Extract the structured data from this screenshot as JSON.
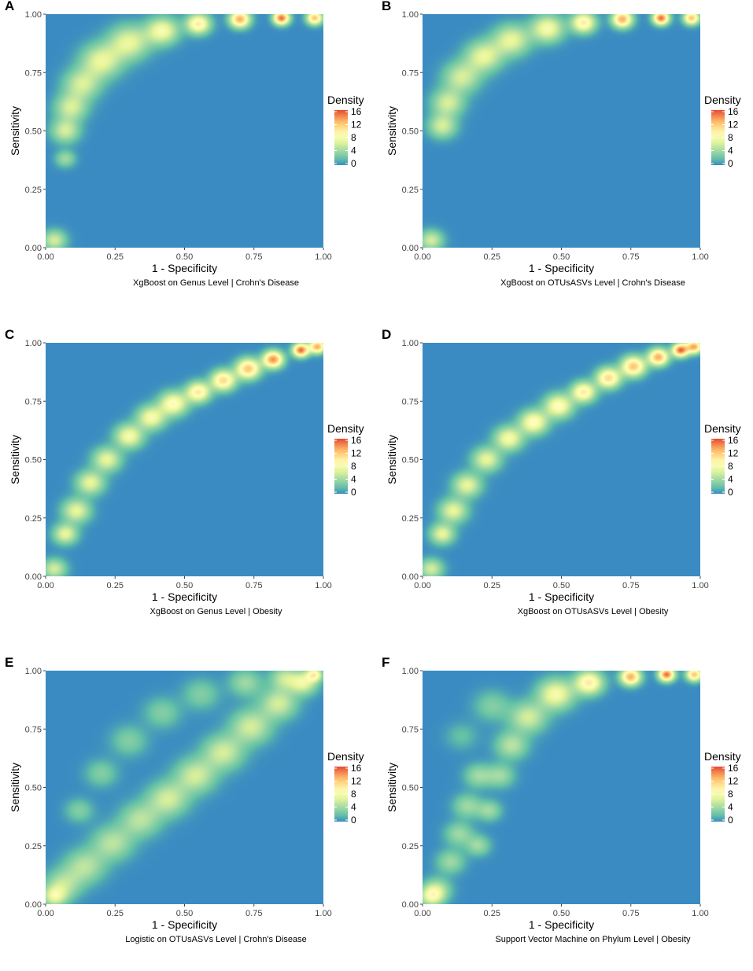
{
  "legend": {
    "title": "Density",
    "ticks": [
      "16",
      "12",
      "8",
      "4",
      "0"
    ],
    "colors": [
      "#e34a33",
      "#fc8d59",
      "#fee08b",
      "#ffffbf",
      "#e6f598",
      "#99d594",
      "#3288bd"
    ]
  },
  "background_color": "#3a8bc2",
  "chart_data": [
    {
      "panel": "A",
      "type": "heatmap",
      "xlabel": "1 - Specificity",
      "ylabel": "Sensitivity",
      "caption": "XgBoost on Genus Level | Crohn's Disease",
      "xlim": [
        0,
        1
      ],
      "ylim": [
        0,
        1
      ],
      "xticks": [
        "0.00",
        "0.25",
        "0.50",
        "0.75",
        "1.00"
      ],
      "yticks": [
        "0.00",
        "0.25",
        "0.50",
        "0.75",
        "1.00"
      ],
      "density_ridge": [
        [
          0.07,
          0.5,
          6,
          0.035
        ],
        [
          0.09,
          0.6,
          6,
          0.04
        ],
        [
          0.13,
          0.7,
          6,
          0.045
        ],
        [
          0.2,
          0.8,
          7,
          0.05
        ],
        [
          0.3,
          0.88,
          7,
          0.05
        ],
        [
          0.42,
          0.93,
          8,
          0.04
        ],
        [
          0.55,
          0.96,
          10,
          0.03
        ],
        [
          0.7,
          0.98,
          13,
          0.025
        ],
        [
          0.85,
          0.985,
          15,
          0.02
        ],
        [
          0.97,
          0.985,
          12,
          0.02
        ],
        [
          0.07,
          0.38,
          4,
          0.025
        ],
        [
          0.03,
          0.03,
          6,
          0.03
        ]
      ]
    },
    {
      "panel": "B",
      "type": "heatmap",
      "xlabel": "1 - Specificity",
      "ylabel": "Sensitivity",
      "caption": "XgBoost on OTUsASVs Level | Crohn's Disease",
      "xlim": [
        0,
        1
      ],
      "ylim": [
        0,
        1
      ],
      "xticks": [
        "0.00",
        "0.25",
        "0.50",
        "0.75",
        "1.00"
      ],
      "yticks": [
        "0.00",
        "0.25",
        "0.50",
        "0.75",
        "1.00"
      ],
      "density_ridge": [
        [
          0.07,
          0.52,
          6,
          0.035
        ],
        [
          0.09,
          0.62,
          6,
          0.04
        ],
        [
          0.14,
          0.73,
          6,
          0.045
        ],
        [
          0.22,
          0.82,
          7,
          0.045
        ],
        [
          0.32,
          0.89,
          7,
          0.045
        ],
        [
          0.45,
          0.94,
          8,
          0.04
        ],
        [
          0.58,
          0.965,
          10,
          0.03
        ],
        [
          0.72,
          0.98,
          13,
          0.025
        ],
        [
          0.86,
          0.985,
          15,
          0.02
        ],
        [
          0.97,
          0.985,
          12,
          0.02
        ],
        [
          0.03,
          0.03,
          6,
          0.03
        ]
      ]
    },
    {
      "panel": "C",
      "type": "heatmap",
      "xlabel": "1 - Specificity",
      "ylabel": "Sensitivity",
      "caption": "XgBoost on Genus Level | Obesity",
      "xlim": [
        0,
        1
      ],
      "ylim": [
        0,
        1
      ],
      "xticks": [
        "0.00",
        "0.25",
        "0.50",
        "0.75",
        "1.00"
      ],
      "yticks": [
        "0.00",
        "0.25",
        "0.50",
        "0.75",
        "1.00"
      ],
      "density_ridge": [
        [
          0.07,
          0.18,
          7,
          0.03
        ],
        [
          0.11,
          0.28,
          7,
          0.035
        ],
        [
          0.16,
          0.4,
          7,
          0.035
        ],
        [
          0.22,
          0.5,
          7,
          0.035
        ],
        [
          0.3,
          0.6,
          8,
          0.035
        ],
        [
          0.38,
          0.68,
          8,
          0.035
        ],
        [
          0.46,
          0.74,
          9,
          0.035
        ],
        [
          0.55,
          0.79,
          10,
          0.03
        ],
        [
          0.64,
          0.84,
          11,
          0.03
        ],
        [
          0.73,
          0.89,
          12,
          0.03
        ],
        [
          0.82,
          0.93,
          14,
          0.025
        ],
        [
          0.92,
          0.97,
          15,
          0.02
        ],
        [
          0.98,
          0.985,
          13,
          0.02
        ],
        [
          0.03,
          0.03,
          6,
          0.03
        ]
      ]
    },
    {
      "panel": "D",
      "type": "heatmap",
      "xlabel": "1 - Specificity",
      "ylabel": "Sensitivity",
      "caption": "XgBoost on OTUsASVs Level | Obesity",
      "xlim": [
        0,
        1
      ],
      "ylim": [
        0,
        1
      ],
      "xticks": [
        "0.00",
        "0.25",
        "0.50",
        "0.75",
        "1.00"
      ],
      "yticks": [
        "0.00",
        "0.25",
        "0.50",
        "0.75",
        "1.00"
      ],
      "density_ridge": [
        [
          0.07,
          0.18,
          7,
          0.03
        ],
        [
          0.11,
          0.28,
          7,
          0.035
        ],
        [
          0.16,
          0.39,
          7,
          0.035
        ],
        [
          0.23,
          0.5,
          7,
          0.035
        ],
        [
          0.31,
          0.59,
          8,
          0.035
        ],
        [
          0.4,
          0.66,
          9,
          0.035
        ],
        [
          0.49,
          0.73,
          9,
          0.035
        ],
        [
          0.58,
          0.79,
          10,
          0.03
        ],
        [
          0.67,
          0.85,
          11,
          0.03
        ],
        [
          0.76,
          0.9,
          12,
          0.03
        ],
        [
          0.85,
          0.94,
          13,
          0.025
        ],
        [
          0.93,
          0.97,
          15,
          0.02
        ],
        [
          0.98,
          0.985,
          13,
          0.02
        ],
        [
          0.03,
          0.03,
          6,
          0.03
        ]
      ]
    },
    {
      "panel": "E",
      "type": "heatmap",
      "xlabel": "1 - Specificity",
      "ylabel": "Sensitivity",
      "caption": "Logistic on OTUsASVs Level | Crohn's Disease",
      "xlim": [
        0,
        1
      ],
      "ylim": [
        0,
        1
      ],
      "xticks": [
        "0.00",
        "0.25",
        "0.50",
        "0.75",
        "1.00"
      ],
      "yticks": [
        "0.00",
        "0.25",
        "0.50",
        "0.75",
        "1.00"
      ],
      "density_ridge": [
        [
          0.06,
          0.08,
          5,
          0.045
        ],
        [
          0.14,
          0.16,
          5,
          0.05
        ],
        [
          0.24,
          0.26,
          5,
          0.05
        ],
        [
          0.34,
          0.36,
          5,
          0.05
        ],
        [
          0.44,
          0.45,
          6,
          0.05
        ],
        [
          0.54,
          0.55,
          6,
          0.05
        ],
        [
          0.64,
          0.65,
          6,
          0.05
        ],
        [
          0.74,
          0.76,
          6,
          0.05
        ],
        [
          0.84,
          0.86,
          6,
          0.045
        ],
        [
          0.93,
          0.95,
          7,
          0.035
        ],
        [
          0.12,
          0.4,
          3,
          0.035
        ],
        [
          0.2,
          0.56,
          3,
          0.04
        ],
        [
          0.3,
          0.7,
          3,
          0.045
        ],
        [
          0.42,
          0.82,
          3,
          0.045
        ],
        [
          0.56,
          0.9,
          3,
          0.045
        ],
        [
          0.72,
          0.95,
          4,
          0.04
        ],
        [
          0.86,
          0.97,
          5,
          0.035
        ],
        [
          0.97,
          0.985,
          8,
          0.02
        ],
        [
          0.03,
          0.03,
          6,
          0.03
        ]
      ]
    },
    {
      "panel": "F",
      "type": "heatmap",
      "xlabel": "1 - Specificity",
      "ylabel": "Sensitivity",
      "caption": "Support Vector Machine on Phylum Level | Obesity",
      "xlim": [
        0,
        1
      ],
      "ylim": [
        0,
        1
      ],
      "xticks": [
        "0.00",
        "0.25",
        "0.50",
        "0.75",
        "1.00"
      ],
      "yticks": [
        "0.00",
        "0.25",
        "0.50",
        "0.75",
        "1.00"
      ],
      "density_ridge": [
        [
          0.05,
          0.06,
          5,
          0.035
        ],
        [
          0.1,
          0.18,
          4,
          0.035
        ],
        [
          0.13,
          0.3,
          4,
          0.035
        ],
        [
          0.16,
          0.42,
          4,
          0.035
        ],
        [
          0.2,
          0.55,
          4,
          0.035
        ],
        [
          0.2,
          0.25,
          4,
          0.03
        ],
        [
          0.24,
          0.4,
          4,
          0.03
        ],
        [
          0.28,
          0.55,
          4,
          0.035
        ],
        [
          0.32,
          0.68,
          5,
          0.04
        ],
        [
          0.38,
          0.8,
          6,
          0.045
        ],
        [
          0.48,
          0.9,
          8,
          0.045
        ],
        [
          0.6,
          0.95,
          10,
          0.035
        ],
        [
          0.75,
          0.975,
          13,
          0.025
        ],
        [
          0.88,
          0.985,
          15,
          0.02
        ],
        [
          0.98,
          0.985,
          12,
          0.02
        ],
        [
          0.14,
          0.72,
          2,
          0.04
        ],
        [
          0.25,
          0.85,
          3,
          0.045
        ],
        [
          0.03,
          0.03,
          6,
          0.03
        ]
      ]
    }
  ]
}
